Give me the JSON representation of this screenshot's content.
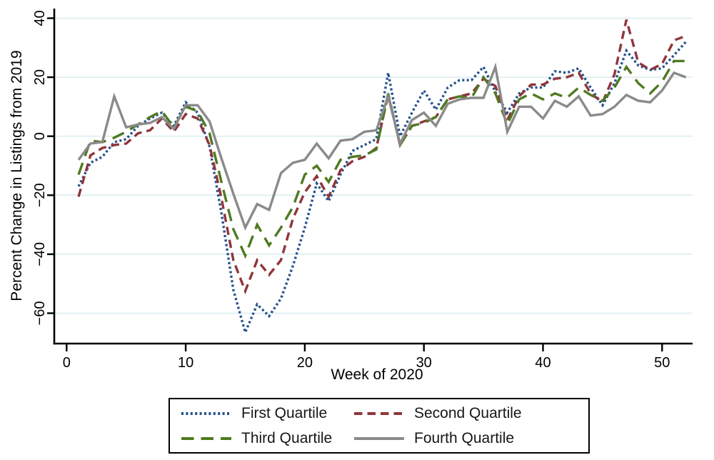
{
  "chart_data": {
    "type": "line",
    "title": "",
    "xlabel": "Week of 2020",
    "ylabel": "Percent Change in Listings from 2019",
    "x": [
      1,
      2,
      3,
      4,
      5,
      6,
      7,
      8,
      9,
      10,
      11,
      12,
      13,
      14,
      15,
      16,
      17,
      18,
      19,
      20,
      21,
      22,
      23,
      24,
      25,
      26,
      27,
      28,
      29,
      30,
      31,
      32,
      33,
      34,
      35,
      36,
      37,
      38,
      39,
      40,
      41,
      42,
      43,
      44,
      45,
      46,
      47,
      48,
      49,
      50,
      51,
      52
    ],
    "xticks": [
      0,
      10,
      20,
      30,
      40,
      50
    ],
    "yticks": [
      40,
      20,
      0,
      -20,
      -40,
      -60
    ],
    "xlim": [
      -1,
      53.5
    ],
    "ylim": [
      -70,
      43
    ],
    "grid": "horizontal",
    "grid_color": "#e1f0f2",
    "axis_color": "#000000",
    "legend_position": "bottom",
    "series": [
      {
        "name": "First Quartile",
        "color": "#24518d",
        "dash": "dotted",
        "values": [
          -17,
          -9,
          -7,
          -2,
          -1,
          3.5,
          6,
          8,
          3.5,
          11.5,
          8,
          -3.5,
          -26,
          -52,
          -66.5,
          -57,
          -61,
          -55,
          -44,
          -31,
          -16,
          -22,
          -13,
          -5,
          -3,
          -1,
          21.5,
          0,
          8,
          15.5,
          9,
          16.5,
          19,
          19,
          23.5,
          15,
          8,
          14.5,
          16.5,
          16.5,
          22,
          21.5,
          23,
          16.5,
          10.5,
          18,
          29,
          24,
          22.5,
          23,
          27.5,
          32
        ]
      },
      {
        "name": "Second Quartile",
        "color": "#90353b",
        "dash": "dashed",
        "values": [
          -20.5,
          -6.5,
          -4,
          -3,
          -2.5,
          1,
          2,
          6,
          1.5,
          7.5,
          6,
          -3,
          -21,
          -42,
          -52.5,
          -42,
          -47,
          -42,
          -28,
          -19,
          -13.5,
          -20.5,
          -11.5,
          -8.5,
          -7,
          -4,
          14,
          -3,
          3.5,
          5,
          6.5,
          12.5,
          13.5,
          14.5,
          19.5,
          17,
          5.5,
          13.5,
          17.5,
          17.5,
          19.5,
          20,
          21.5,
          14.5,
          11.5,
          21,
          39.5,
          25,
          22.5,
          24.5,
          32.5,
          34
        ]
      },
      {
        "name": "Third Quartile",
        "color": "#4f7a21",
        "dash": "longdash",
        "values": [
          -13,
          -1.5,
          -2,
          -0.5,
          1.5,
          4,
          6.5,
          8.5,
          3,
          10,
          8.5,
          1,
          -15.5,
          -31.5,
          -40.5,
          -30,
          -37,
          -31,
          -24,
          -13,
          -10,
          -15.5,
          -8,
          -7,
          -6.5,
          -4.5,
          14.5,
          -3,
          3.5,
          4.5,
          6.5,
          12.5,
          13.5,
          13,
          20,
          14.5,
          4,
          12.5,
          14.5,
          12.5,
          14.5,
          13,
          16.5,
          14,
          12,
          16.5,
          23.5,
          18,
          14.5,
          18.5,
          25.5,
          25.5
        ]
      },
      {
        "name": "Fourth Quartile",
        "color": "#8a8a8a",
        "dash": "solid",
        "values": [
          -8,
          -2.5,
          -2,
          13.5,
          3,
          4,
          4.5,
          6.5,
          2.5,
          10.5,
          10.5,
          5,
          -7.5,
          -19.5,
          -31,
          -23,
          -25,
          -12.5,
          -9,
          -8,
          -2.5,
          -7.5,
          -1.5,
          -1,
          1.5,
          2,
          13.5,
          -2.5,
          5.5,
          8,
          3.5,
          11,
          12.5,
          13,
          13,
          23.5,
          1.5,
          10,
          10,
          6,
          12,
          10,
          13.5,
          7,
          7.5,
          10,
          14,
          12,
          11.5,
          15.5,
          21.5,
          20
        ]
      }
    ]
  }
}
